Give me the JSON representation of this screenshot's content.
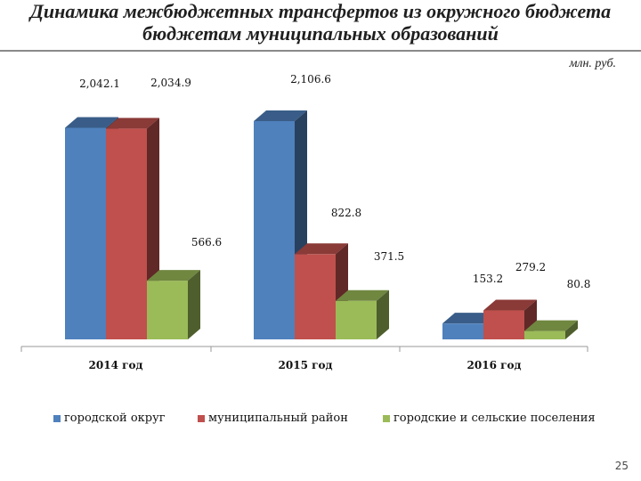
{
  "title": {
    "line1": "Динамика межбюджетных трансфертов из окружного бюджета",
    "line2": "бюджетам муниципальных образований"
  },
  "unit_label": "млн. руб.",
  "page_number": "25",
  "chart_data": {
    "type": "bar",
    "style": "3d-clustered-column",
    "categories": [
      "2014 год",
      "2015 год",
      "2016 год"
    ],
    "series": [
      {
        "name": "городской округ",
        "color": "#4f81bd",
        "values": [
          2042.1,
          2106.6,
          153.2
        ],
        "labels": [
          "2,042.1",
          "2,106.6",
          "153.2"
        ]
      },
      {
        "name": "муниципальный район",
        "color": "#c0504d",
        "values": [
          2034.9,
          822.8,
          279.2
        ],
        "labels": [
          "2,034.9",
          "822.8",
          "279.2"
        ]
      },
      {
        "name": "городские и сельские поселения",
        "color": "#9bbb59",
        "values": [
          566.6,
          371.5,
          80.8
        ],
        "labels": [
          "566.6",
          "371.5",
          "80.8"
        ]
      }
    ],
    "ylim": [
      0,
      2106.6
    ],
    "grid": false,
    "legend_position": "bottom"
  }
}
